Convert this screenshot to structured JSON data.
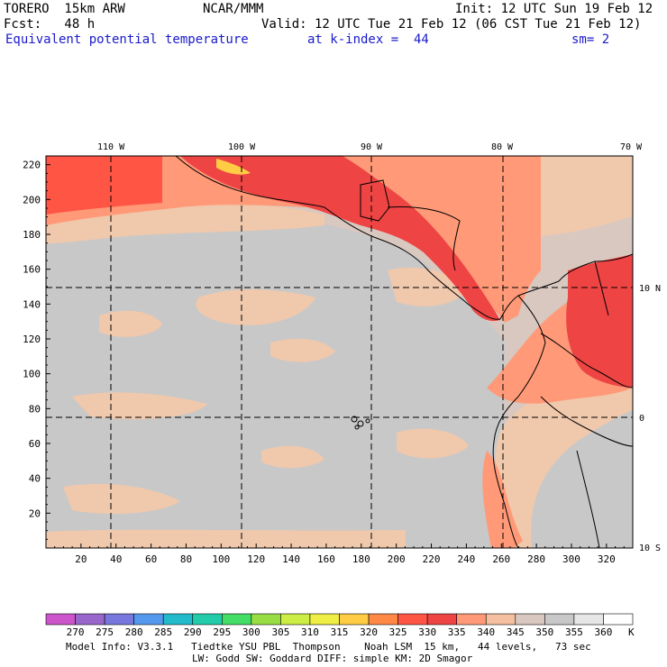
{
  "header": {
    "model": "TORERO  15km ARW",
    "org": "NCAR/MMM",
    "init": "Init: 12 UTC Sun 19 Feb 12",
    "fcst": "Fcst:   48 h",
    "valid": "Valid: 12 UTC Tue 21 Feb 12 (06 CST Tue 21 Feb 12)",
    "field": "Equivalent potential temperature",
    "level": "at k-index =  44",
    "smooth": "sm= 2"
  },
  "chart_data": {
    "type": "heatmap",
    "title": "Equivalent potential temperature",
    "x_ticks": [
      20,
      40,
      60,
      80,
      100,
      120,
      140,
      160,
      180,
      200,
      220,
      240,
      260,
      280,
      300,
      320
    ],
    "y_ticks": [
      20,
      40,
      60,
      80,
      100,
      120,
      140,
      160,
      180,
      200,
      220
    ],
    "xlim": [
      0,
      335
    ],
    "ylim": [
      0,
      225
    ],
    "lon_labels": [
      "110 W",
      "100 W",
      "90 W",
      "80 W",
      "70 W"
    ],
    "lat_labels": [
      "10 N",
      "0",
      "10 S"
    ],
    "colorbar": {
      "units": "K",
      "levels": [
        270,
        275,
        280,
        285,
        290,
        295,
        300,
        305,
        310,
        315,
        320,
        325,
        330,
        335,
        340,
        345,
        350,
        355,
        360
      ],
      "colors": [
        "#cc55cc",
        "#9966cc",
        "#7777dd",
        "#5599ee",
        "#22bbcc",
        "#22ccaa",
        "#44dd66",
        "#99dd44",
        "#ccee44",
        "#eeee44",
        "#ffcc44",
        "#ff8844",
        "#ff5544",
        "#ee4444",
        "#ff9977",
        "#f5c0a0",
        "#d8c8c0",
        "#c8c8c8",
        "#e6e6e6",
        "#ffffff"
      ]
    }
  },
  "footer": {
    "line1": "Model Info: V3.3.1   Tiedtke YSU PBL  Thompson    Noah LSM  15 km,   44 levels,   73 sec",
    "line2": "LW: Godd SW: Goddard DIFF: simple KM: 2D Smagor"
  }
}
